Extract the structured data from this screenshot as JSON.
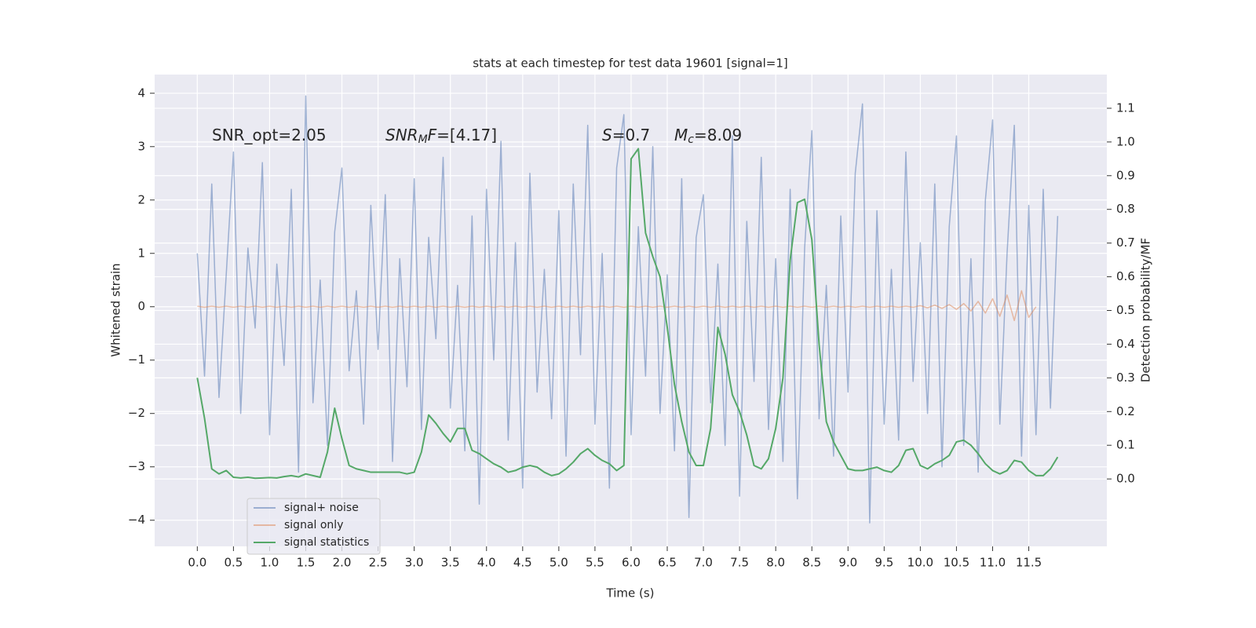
{
  "chart_data": {
    "type": "line",
    "title": "stats at each timestep for test data 19601 [signal=1]",
    "x_label": "Time (s)",
    "y_label": "Whitened strain",
    "y2_label": "Detection probability/MF",
    "xlim": [
      -0.59,
      12.58
    ],
    "ylim": [
      -4.49,
      4.35
    ],
    "y2lim": [
      -0.2,
      1.2
    ],
    "xticks": [
      {
        "value": 0,
        "label": "0.0"
      },
      0.5,
      {
        "value": 1,
        "label": "1.0"
      },
      1.5,
      {
        "value": 2,
        "label": "2.0"
      },
      2.5,
      {
        "value": 3,
        "label": "3.0"
      },
      3.5,
      {
        "value": 4,
        "label": "4.0"
      },
      4.5,
      {
        "value": 5,
        "label": "5.0"
      },
      5.5,
      {
        "value": 6,
        "label": "6.0"
      },
      6.5,
      {
        "value": 7,
        "label": "7.0"
      },
      7.5,
      {
        "value": 8,
        "label": "8.0"
      },
      8.5,
      {
        "value": 9,
        "label": "9.0"
      },
      9.5,
      {
        "value": 10,
        "label": "10.0"
      },
      10.5,
      {
        "value": 11,
        "label": "11.0"
      },
      11.5
    ],
    "yticks": [
      {
        "value": -4,
        "label": "−4"
      },
      {
        "value": -3,
        "label": "−3"
      },
      {
        "value": -2,
        "label": "−2"
      },
      {
        "value": -1,
        "label": "−1"
      },
      0,
      1,
      2,
      3,
      4
    ],
    "y2ticks": [
      {
        "value": 0,
        "label": "0.0"
      },
      0.1,
      0.2,
      0.3,
      0.4,
      0.5,
      0.6,
      0.7,
      0.8,
      0.9,
      {
        "value": 1,
        "label": "1.0"
      },
      1.1
    ],
    "grid": true,
    "legend": "lower left",
    "x": [
      0.0,
      0.1,
      0.2,
      0.3,
      0.4,
      0.5,
      0.6,
      0.7,
      0.8,
      0.9,
      1.0,
      1.1,
      1.2,
      1.3,
      1.4,
      1.5,
      1.6,
      1.7,
      1.8,
      1.9,
      2.0,
      2.1,
      2.2,
      2.3,
      2.4,
      2.5,
      2.6,
      2.7,
      2.8,
      2.9,
      3.0,
      3.1,
      3.2,
      3.3,
      3.4,
      3.5,
      3.6,
      3.7,
      3.8,
      3.9,
      4.0,
      4.1,
      4.2,
      4.3,
      4.4,
      4.5,
      4.6,
      4.7,
      4.8,
      4.9,
      5.0,
      5.1,
      5.2,
      5.3,
      5.4,
      5.5,
      5.6,
      5.7,
      5.8,
      5.9,
      6.0,
      6.1,
      6.2,
      6.3,
      6.4,
      6.5,
      6.6,
      6.7,
      6.8,
      6.9,
      7.0,
      7.1,
      7.2,
      7.3,
      7.4,
      7.5,
      7.6,
      7.7,
      7.8,
      7.9,
      8.0,
      8.1,
      8.2,
      8.3,
      8.4,
      8.5,
      8.6,
      8.7,
      8.8,
      8.9,
      9.0,
      9.1,
      9.2,
      9.3,
      9.4,
      9.5,
      9.6,
      9.7,
      9.8,
      9.9,
      10.0,
      10.1,
      10.2,
      10.3,
      10.4,
      10.5,
      10.6,
      10.7,
      10.8,
      10.9,
      11.0,
      11.1,
      11.2,
      11.3,
      11.4,
      11.5,
      11.6,
      11.7,
      11.8,
      11.9
    ],
    "series": [
      {
        "name": "signal+ noise",
        "color": "#4c72b0",
        "opacity": 0.5,
        "values": [
          1.0,
          -1.3,
          2.3,
          -1.7,
          0.6,
          2.9,
          -2.0,
          1.1,
          -0.4,
          2.7,
          -2.4,
          0.8,
          -1.1,
          2.2,
          -3.1,
          3.95,
          -1.8,
          0.5,
          -2.6,
          1.4,
          2.6,
          -1.2,
          0.3,
          -2.2,
          1.9,
          -0.8,
          2.1,
          -2.9,
          0.9,
          -1.5,
          2.4,
          -2.3,
          1.3,
          -0.6,
          2.8,
          -1.9,
          0.4,
          -2.7,
          1.7,
          -3.7,
          2.2,
          -1.0,
          3.1,
          -2.5,
          1.2,
          -3.4,
          2.5,
          -1.6,
          0.7,
          -2.1,
          1.8,
          -2.8,
          2.3,
          -0.9,
          3.4,
          -2.2,
          1.0,
          -3.4,
          2.6,
          3.6,
          -2.4,
          1.5,
          -1.3,
          3.0,
          -2.0,
          0.6,
          -2.7,
          2.4,
          -3.95,
          1.3,
          2.1,
          -1.8,
          0.8,
          -2.6,
          3.2,
          -3.55,
          1.6,
          -1.4,
          2.8,
          -2.3,
          0.9,
          -2.9,
          2.2,
          -3.6,
          1.1,
          3.3,
          -2.1,
          0.4,
          -2.8,
          1.7,
          -1.6,
          2.5,
          3.8,
          -4.05,
          1.8,
          -2.2,
          0.7,
          -2.5,
          2.9,
          -1.4,
          1.2,
          -2.0,
          2.3,
          -3.0,
          1.5,
          3.2,
          -2.6,
          0.9,
          -3.1,
          2.0,
          3.5,
          -2.2,
          1.0,
          3.4,
          -2.8,
          1.9,
          -2.4,
          2.2,
          -1.9,
          1.7
        ]
      },
      {
        "name": "signal only",
        "color": "#dd8452",
        "opacity": 0.5,
        "values": [
          0.01,
          -0.01,
          0.01,
          -0.01,
          0.01,
          -0.01,
          0.01,
          -0.01,
          0.01,
          -0.01,
          0.01,
          -0.01,
          0.01,
          -0.01,
          0.01,
          -0.01,
          0.01,
          -0.01,
          0.01,
          -0.01,
          0.01,
          -0.01,
          0.01,
          -0.01,
          0.01,
          -0.01,
          0.01,
          -0.01,
          0.01,
          -0.01,
          0.01,
          -0.01,
          0.01,
          -0.01,
          0.01,
          -0.01,
          0.01,
          -0.01,
          0.01,
          -0.01,
          0.01,
          -0.01,
          0.01,
          -0.01,
          0.01,
          -0.01,
          0.01,
          -0.01,
          0.01,
          -0.01,
          0.01,
          -0.01,
          0.01,
          -0.01,
          0.01,
          -0.01,
          0.01,
          -0.01,
          0.01,
          -0.01,
          0.01,
          -0.01,
          0.01,
          -0.01,
          0.01,
          -0.01,
          0.01,
          -0.01,
          0.01,
          -0.01,
          0.01,
          -0.01,
          0.01,
          -0.01,
          0.01,
          -0.01,
          0.01,
          -0.01,
          0.01,
          -0.01,
          0.01,
          -0.01,
          0.01,
          -0.01,
          0.01,
          -0.01,
          0.01,
          -0.01,
          0.01,
          -0.01,
          0.01,
          -0.01,
          0.01,
          -0.01,
          0.01,
          -0.01,
          0.01,
          -0.01,
          0.01,
          -0.01,
          0.02,
          -0.02,
          0.03,
          -0.03,
          0.04,
          -0.05,
          0.06,
          -0.08,
          0.1,
          -0.12,
          0.15,
          -0.18,
          0.22,
          -0.26,
          0.3,
          -0.2,
          0.0,
          null,
          null,
          null
        ]
      },
      {
        "name": "signal statistics",
        "color": "#55a868",
        "axis": "y2",
        "values": [
          0.3,
          0.18,
          0.03,
          0.015,
          0.025,
          0.005,
          0.003,
          0.005,
          0.002,
          0.003,
          0.004,
          0.003,
          0.007,
          0.01,
          0.006,
          0.015,
          0.01,
          0.005,
          0.08,
          0.21,
          0.12,
          0.04,
          0.03,
          0.025,
          0.02,
          0.02,
          0.02,
          0.02,
          0.02,
          0.015,
          0.02,
          0.08,
          0.19,
          0.165,
          0.135,
          0.11,
          0.15,
          0.15,
          0.085,
          0.075,
          0.06,
          0.045,
          0.035,
          0.02,
          0.025,
          0.035,
          0.04,
          0.035,
          0.02,
          0.01,
          0.015,
          0.03,
          0.05,
          0.075,
          0.09,
          0.07,
          0.055,
          0.045,
          0.025,
          0.04,
          0.95,
          0.98,
          0.73,
          0.66,
          0.6,
          0.45,
          0.28,
          0.17,
          0.08,
          0.04,
          0.04,
          0.15,
          0.45,
          0.37,
          0.25,
          0.2,
          0.13,
          0.04,
          0.03,
          0.06,
          0.15,
          0.3,
          0.65,
          0.82,
          0.83,
          0.71,
          0.4,
          0.17,
          0.11,
          0.07,
          0.03,
          0.025,
          0.025,
          0.03,
          0.035,
          0.025,
          0.02,
          0.04,
          0.085,
          0.09,
          0.04,
          0.03,
          0.045,
          0.055,
          0.07,
          0.11,
          0.115,
          0.1,
          0.075,
          0.045,
          0.025,
          0.015,
          0.025,
          0.055,
          0.05,
          0.025,
          0.01,
          0.01,
          0.03,
          0.065
        ]
      }
    ],
    "annotations": [
      {
        "segments": [
          {
            "text": "SNR_opt=2.05",
            "style": "normal"
          }
        ]
      },
      {
        "segments": [
          {
            "text": "SNR",
            "style": "italic"
          },
          {
            "text": "M",
            "style": "sub"
          },
          {
            "text": "F",
            "style": "italic"
          },
          {
            "text": "=[4.17]",
            "style": "normal"
          }
        ]
      },
      {
        "segments": [
          {
            "text": "S",
            "style": "italic"
          },
          {
            "text": "=0.7",
            "style": "normal"
          }
        ]
      },
      {
        "segments": [
          {
            "text": "M",
            "style": "italic"
          },
          {
            "text": "c",
            "style": "sub"
          },
          {
            "text": "=8.09",
            "style": "normal"
          }
        ]
      }
    ]
  }
}
